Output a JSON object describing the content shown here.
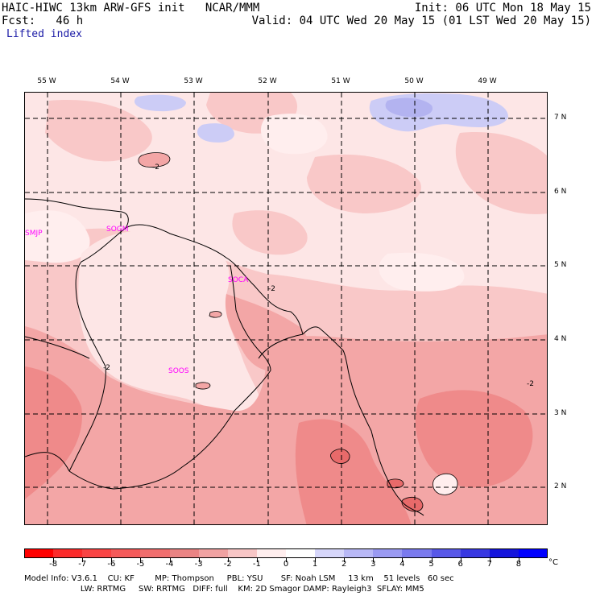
{
  "header": {
    "model_line": "HAIC-HIWC 13km ARW-GFS init   NCAR/MMM",
    "init_line": "Init: 06 UTC Mon 18 May 15",
    "fcst_line": "Fcst:   46 h",
    "valid_line": "Valid: 04 UTC Wed 20 May 15 (01 LST Wed 20 May 15)",
    "field_name": "Lifted index"
  },
  "map": {
    "longitude_labels": [
      "55 W",
      "54 W",
      "53 W",
      "52 W",
      "51 W",
      "50 W",
      "49 W"
    ],
    "latitude_labels": [
      "7 N",
      "6 N",
      "5 N",
      "4 N",
      "3 N",
      "2 N"
    ],
    "stations": [
      "SMJP",
      "SOGM",
      "SOCA",
      "SOOS"
    ],
    "contour_labels": [
      "-2",
      "-2",
      "-2",
      "-2"
    ],
    "colors": {
      "very_light_pink": "#fde6e6",
      "light_pink": "#f9c8c8",
      "pink": "#f3a6a6",
      "medium_red": "#ef8a8a",
      "red": "#e86a6a",
      "light_blue": "#ccccf6",
      "blue": "#b3b3f0",
      "station_label": "#ff00ff",
      "grid": "#000000"
    }
  },
  "colorbar": {
    "labels": [
      "-8",
      "-7",
      "-6",
      "-5",
      "-4",
      "-3",
      "-2",
      "-1",
      "0",
      "1",
      "2",
      "3",
      "4",
      "5",
      "6",
      "7",
      "8"
    ],
    "unit": "°C",
    "colors": [
      "#ff0000",
      "#fc2b2b",
      "#f94444",
      "#f55a5a",
      "#f06e6e",
      "#ea8484",
      "#f0a2a2",
      "#f8c6c6",
      "#ffeeee",
      "#ffffff",
      "#d6d6fa",
      "#b8b8f6",
      "#9a9af2",
      "#7a7aee",
      "#5858e8",
      "#3838e2",
      "#1414dc",
      "#0000ff"
    ]
  },
  "footer": {
    "line1": "Model Info: V3.6.1    CU: KF        MP: Thompson     PBL: YSU       SF: Noah LSM     13 km    51 levels   60 sec",
    "line2": "                      LW: RRTMG     SW: RRTMG   DIFF: full    KM: 2D Smagor DAMP: Rayleigh3  SFLAY: MM5"
  }
}
